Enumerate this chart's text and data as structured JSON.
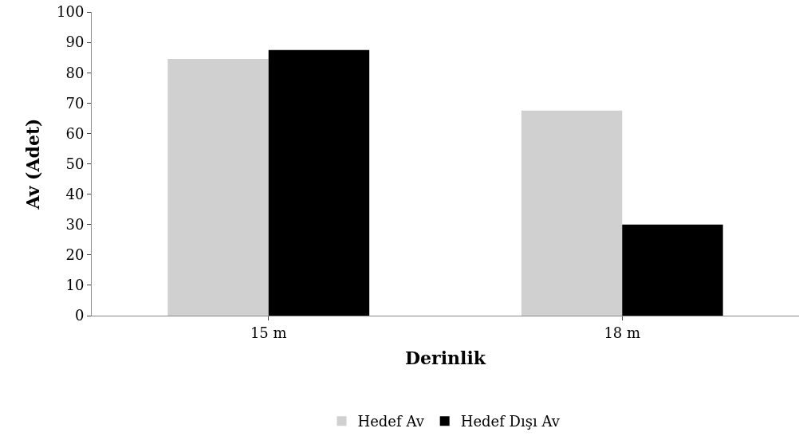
{
  "chart_data": {
    "type": "bar",
    "xlabel": "Derinlik",
    "ylabel": "Av (Adet)",
    "categories": [
      "15 m",
      "18 m"
    ],
    "series": [
      {
        "name": "Hedef Av",
        "color": "#d0d0d0",
        "values": [
          84.5,
          67.5
        ]
      },
      {
        "name": "Hedef Dışı Av",
        "color": "#000000",
        "values": [
          87.5,
          30
        ]
      }
    ],
    "ylim": [
      0,
      100
    ],
    "yticks": [
      0,
      10,
      20,
      30,
      40,
      50,
      60,
      70,
      80,
      90,
      100
    ],
    "legend": "bottom"
  }
}
